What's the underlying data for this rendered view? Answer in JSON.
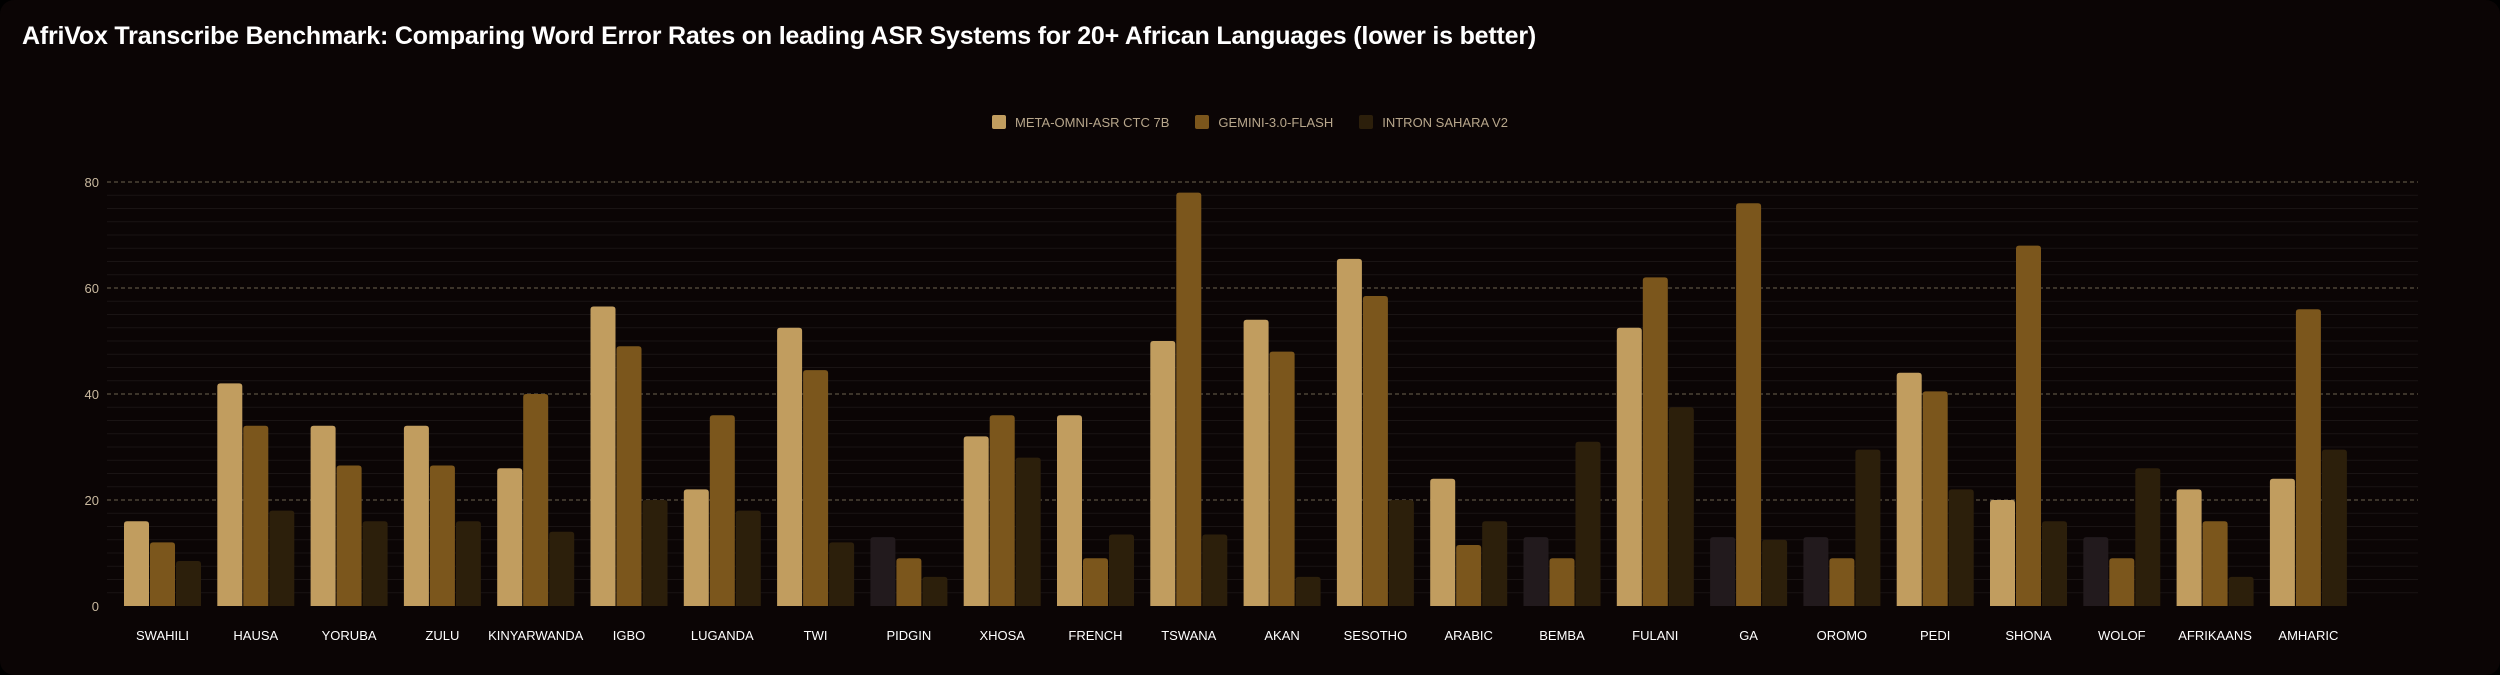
{
  "chart_data": {
    "type": "bar",
    "title": "AfriVox Transcribe Benchmark: Comparing Word Error Rates on leading ASR Systems for 20+ African Languages (lower is better)",
    "ylim": [
      0,
      80
    ],
    "yticks": [
      0,
      20,
      40,
      60,
      80
    ],
    "grid": true,
    "legend_position": "top-center",
    "categories": [
      "SWAHILI",
      "HAUSA",
      "YORUBA",
      "ZULU",
      "KINYARWANDA",
      "IGBO",
      "LUGANDA",
      "TWI",
      "PIDGIN",
      "XHOSA",
      "FRENCH",
      "TSWANA",
      "AKAN",
      "SESOTHO",
      "ARABIC",
      "BEMBA",
      "FULANI",
      "GA",
      "OROMO",
      "PEDI",
      "SHONA",
      "WOLOF",
      "AFRIKAANS",
      "AMHARIC"
    ],
    "series": [
      {
        "name": "META-OMNI-ASR CTC 7B",
        "color": "#c19d5f",
        "values": [
          16,
          42,
          34,
          34,
          26,
          56.5,
          22,
          52.5,
          null,
          32,
          36,
          50,
          54,
          65.5,
          24,
          null,
          52.5,
          null,
          null,
          44,
          20,
          null,
          22,
          24
        ]
      },
      {
        "name": "GEMINI-3.0-FLASH",
        "color": "#7b561c",
        "values": [
          12,
          34,
          26.5,
          26.5,
          40,
          49,
          36,
          44.5,
          9,
          36,
          9,
          78,
          48,
          58.5,
          11.5,
          9,
          62,
          76,
          9,
          40.5,
          68,
          9,
          16,
          56
        ]
      },
      {
        "name": "INTRON SAHARA V2",
        "color": "#2c1f0b",
        "values": [
          8.5,
          18,
          16,
          16,
          14,
          20,
          18,
          12,
          5.5,
          28,
          13.5,
          13.5,
          5.5,
          20,
          16,
          31,
          37.5,
          12.5,
          29.5,
          22,
          16,
          26,
          5.5,
          29.5
        ]
      }
    ],
    "placeholder_value": 13,
    "placeholder_color": "#221a1d"
  }
}
